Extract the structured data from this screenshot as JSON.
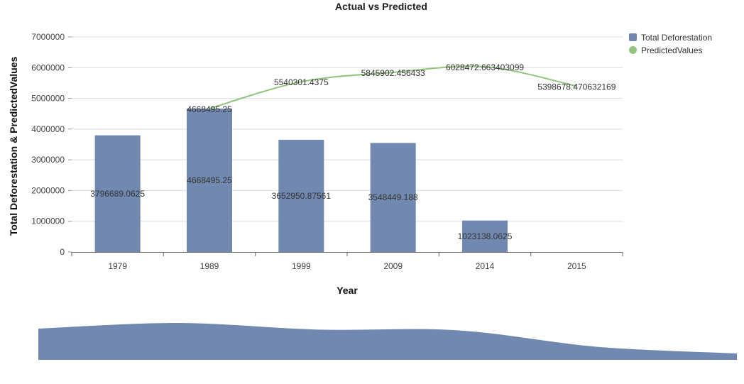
{
  "chart_data": {
    "type": "bar",
    "title": "Actual vs Predicted",
    "xlabel": "Year",
    "ylabel": "Total Deforestation & PredictedValues",
    "ylim": [
      0,
      7000000
    ],
    "yticks": [
      "0",
      "1000000",
      "2000000",
      "3000000",
      "4000000",
      "5000000",
      "6000000",
      "7000000"
    ],
    "categories": [
      "1979",
      "1989",
      "1999",
      "2009",
      "2014",
      "2015"
    ],
    "series": [
      {
        "name": "Total Deforestation",
        "type": "bar",
        "color": "#7189b0",
        "values": [
          3796689.0625,
          4668495.25,
          3652950.87561,
          3548449.188,
          1023138.0625,
          null
        ],
        "labels": [
          "3796689.0625",
          "4668495.25",
          "3652950.87561",
          "3548449.188",
          "1023138.0625",
          ""
        ]
      },
      {
        "name": "PredictedValues",
        "type": "line",
        "color": "#93c47d",
        "values": [
          null,
          4668495.25,
          5540301.4375,
          5845902.456433,
          6028472.663403099,
          5398678.470632169
        ],
        "labels": [
          "",
          "4668495.25",
          "5540301.4375",
          "5845902.456433",
          "6028472.663403099",
          "5398678.470632169"
        ]
      }
    ],
    "legend_position": "top-right",
    "grid": true,
    "navigator": true
  }
}
